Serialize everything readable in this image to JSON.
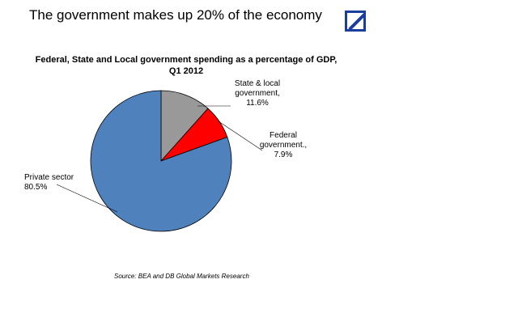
{
  "headline": "The government makes up 20% of the economy",
  "logo": {
    "icon": "deutsche-bank-logo-icon",
    "color": "#1a3d9e"
  },
  "source": "Source:  BEA and DB Global Markets Research",
  "chart_data": {
    "type": "pie",
    "title": "Federal, State and Local government spending as a percentage of GDP, Q1 2012",
    "slices": [
      {
        "name": "State & local government",
        "value": 11.6,
        "label_lines": [
          "State & local",
          "government,",
          "11.6%"
        ],
        "color": "#999999"
      },
      {
        "name": "Federal government.",
        "value": 7.9,
        "label_lines": [
          "Federal",
          "government.,",
          "7.9%"
        ],
        "color": "#ff0000"
      },
      {
        "name": "Private sector",
        "value": 80.5,
        "label_lines": [
          "Private sector",
          "80.5%"
        ],
        "color": "#4f81bd"
      }
    ]
  }
}
